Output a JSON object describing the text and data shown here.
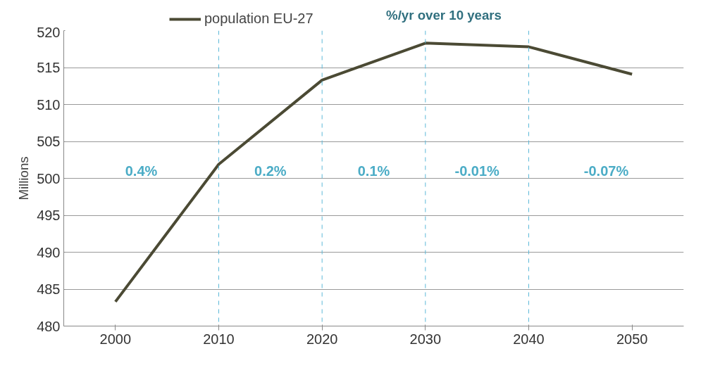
{
  "chart_data": {
    "type": "line",
    "categories": [
      "2000",
      "2010",
      "2020",
      "2030",
      "2040",
      "2050"
    ],
    "series": [
      {
        "name": "population EU-27",
        "color": "#4b4a34",
        "values": [
          483.3,
          501.9,
          513.3,
          518.3,
          517.8,
          514.1
        ]
      }
    ],
    "ylabel": "Millions",
    "ylim": [
      480,
      520
    ],
    "yticks": [
      480,
      485,
      490,
      495,
      500,
      505,
      510,
      515,
      520
    ],
    "grid": "y",
    "legend": "top",
    "marker": "none",
    "line_style": "solid",
    "ref_lines": [
      {
        "axis": "x",
        "value": "2010",
        "color": "#5bb8d8",
        "line_style": "dashed"
      },
      {
        "axis": "x",
        "value": "2020",
        "color": "#5bb8d8",
        "line_style": "dashed"
      },
      {
        "axis": "x",
        "value": "2030",
        "color": "#5bb8d8",
        "line_style": "dashed"
      },
      {
        "axis": "x",
        "value": "2040",
        "color": "#5bb8d8",
        "line_style": "dashed"
      }
    ],
    "annotations": [
      "%/yr over 10 years",
      "0.4%",
      "0.2%",
      "0.1%",
      "-0.01%",
      "-0.07%"
    ]
  }
}
